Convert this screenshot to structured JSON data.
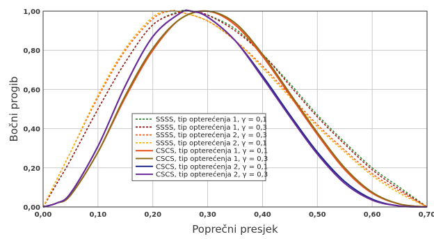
{
  "chart_data": {
    "type": "line",
    "title": "",
    "xlabel": "Poprečni presjek",
    "ylabel": "Bočni progib",
    "xlim": [
      0.0,
      0.7
    ],
    "ylim": [
      0.0,
      1.0
    ],
    "xticks": [
      "0,00",
      "0,10",
      "0,20",
      "0,30",
      "0,40",
      "0,50",
      "0,60",
      "0,70"
    ],
    "yticks": [
      "0,00",
      "0,20",
      "0,40",
      "0,60",
      "0,80",
      "1,00"
    ],
    "grid": true,
    "legend_position": "center",
    "series": [
      {
        "name": "SSSS, tip opterećenja 1, γ = 0,1",
        "color": "#2e8b2e",
        "dash": true,
        "x": [
          0.0,
          0.025,
          0.05,
          0.1,
          0.15,
          0.2,
          0.25,
          0.27,
          0.3,
          0.35,
          0.4,
          0.45,
          0.5,
          0.55,
          0.6,
          0.65,
          0.7
        ],
        "y": [
          0.0,
          0.12,
          0.24,
          0.5,
          0.74,
          0.93,
          1.0,
          1.0,
          0.98,
          0.91,
          0.78,
          0.63,
          0.47,
          0.33,
          0.2,
          0.1,
          0.0
        ]
      },
      {
        "name": "SSSS, tip opterećenja 1, γ = 0,3",
        "color": "#a01818",
        "dash": true,
        "x": [
          0.0,
          0.025,
          0.05,
          0.1,
          0.15,
          0.2,
          0.25,
          0.27,
          0.3,
          0.35,
          0.4,
          0.45,
          0.5,
          0.55,
          0.6,
          0.65,
          0.7
        ],
        "y": [
          0.0,
          0.12,
          0.24,
          0.5,
          0.74,
          0.93,
          0.995,
          1.0,
          0.98,
          0.9,
          0.78,
          0.62,
          0.46,
          0.32,
          0.19,
          0.09,
          0.0
        ]
      },
      {
        "name": "SSSS, tip opterećenja 2, γ = 0,3",
        "color": "#ff5a1e",
        "dash": true,
        "x": [
          0.0,
          0.025,
          0.05,
          0.1,
          0.15,
          0.2,
          0.23,
          0.25,
          0.3,
          0.35,
          0.4,
          0.45,
          0.5,
          0.55,
          0.6,
          0.65,
          0.7
        ],
        "y": [
          0.0,
          0.14,
          0.28,
          0.56,
          0.8,
          0.96,
          1.0,
          0.995,
          0.95,
          0.85,
          0.72,
          0.57,
          0.42,
          0.29,
          0.17,
          0.08,
          0.0
        ]
      },
      {
        "name": "SSSS, tip opterećenja 2, γ = 0,1",
        "color": "#f5b400",
        "dash": true,
        "x": [
          0.0,
          0.025,
          0.05,
          0.1,
          0.15,
          0.2,
          0.23,
          0.25,
          0.3,
          0.35,
          0.4,
          0.45,
          0.5,
          0.55,
          0.6,
          0.65,
          0.7
        ],
        "y": [
          0.0,
          0.14,
          0.28,
          0.57,
          0.81,
          0.97,
          1.0,
          0.995,
          0.95,
          0.85,
          0.71,
          0.56,
          0.41,
          0.28,
          0.16,
          0.07,
          0.0
        ]
      },
      {
        "name": "CSCS, tip opterećenja 1, γ = 0,1",
        "color": "#e8501e",
        "dash": false,
        "x": [
          0.0,
          0.025,
          0.05,
          0.1,
          0.15,
          0.2,
          0.25,
          0.3,
          0.35,
          0.4,
          0.45,
          0.5,
          0.55,
          0.6,
          0.65,
          0.7
        ],
        "y": [
          0.0,
          0.02,
          0.06,
          0.28,
          0.56,
          0.8,
          0.96,
          1.0,
          0.93,
          0.77,
          0.57,
          0.37,
          0.19,
          0.07,
          0.015,
          0.0
        ]
      },
      {
        "name": "CSCS, tip opterećenja 1, γ = 0,3",
        "color": "#8b6a1a",
        "dash": false,
        "x": [
          0.0,
          0.025,
          0.05,
          0.1,
          0.15,
          0.2,
          0.25,
          0.3,
          0.35,
          0.4,
          0.45,
          0.5,
          0.55,
          0.6,
          0.65,
          0.7
        ],
        "y": [
          0.0,
          0.02,
          0.06,
          0.28,
          0.57,
          0.81,
          0.96,
          1.0,
          0.94,
          0.78,
          0.58,
          0.38,
          0.2,
          0.075,
          0.015,
          0.0
        ]
      },
      {
        "name": "CSCS, tip opterećenja 2, γ = 0,1",
        "color": "#1e2a8b",
        "dash": false,
        "x": [
          0.0,
          0.025,
          0.05,
          0.1,
          0.15,
          0.2,
          0.25,
          0.27,
          0.3,
          0.35,
          0.4,
          0.45,
          0.5,
          0.55,
          0.6,
          0.65,
          0.7
        ],
        "y": [
          0.0,
          0.02,
          0.07,
          0.31,
          0.62,
          0.87,
          0.99,
          1.0,
          0.97,
          0.85,
          0.67,
          0.47,
          0.28,
          0.13,
          0.04,
          0.005,
          0.0
        ]
      },
      {
        "name": "CSCS, tip opterećenja 2, γ = 0,3",
        "color": "#6b2a9b",
        "dash": false,
        "x": [
          0.0,
          0.025,
          0.05,
          0.1,
          0.15,
          0.2,
          0.25,
          0.27,
          0.3,
          0.35,
          0.4,
          0.45,
          0.5,
          0.55,
          0.6,
          0.65,
          0.7
        ],
        "y": [
          0.0,
          0.02,
          0.07,
          0.31,
          0.62,
          0.87,
          0.99,
          1.0,
          0.97,
          0.85,
          0.66,
          0.46,
          0.27,
          0.12,
          0.035,
          0.005,
          0.0
        ]
      }
    ]
  }
}
